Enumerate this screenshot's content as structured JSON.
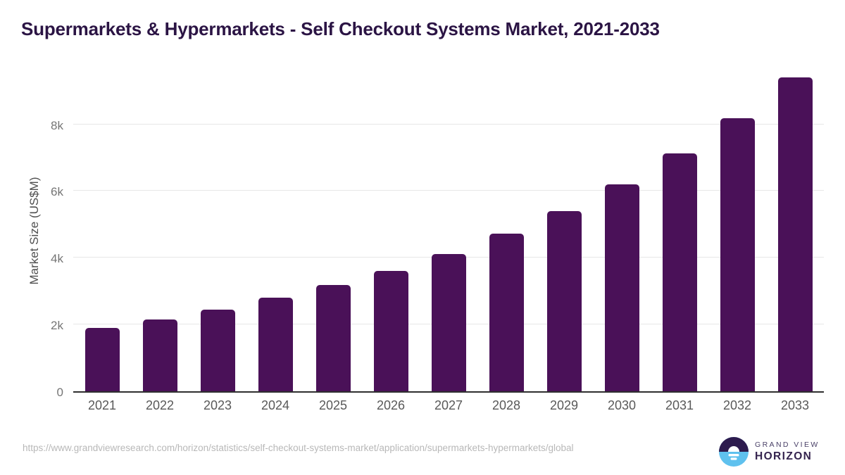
{
  "title": "Supermarkets & Hypermarkets - Self Checkout Systems Market, 2021-2033",
  "chart_data": {
    "type": "bar",
    "title": "Supermarkets & Hypermarkets - Self Checkout Systems Market, 2021-2033",
    "categories": [
      "2021",
      "2022",
      "2023",
      "2024",
      "2025",
      "2026",
      "2027",
      "2028",
      "2029",
      "2030",
      "2031",
      "2032",
      "2033"
    ],
    "values": [
      1900,
      2150,
      2450,
      2800,
      3180,
      3610,
      4110,
      4720,
      5400,
      6200,
      7120,
      8170,
      9400
    ],
    "xlabel": "",
    "ylabel": "Market Size (US$M)",
    "ylim": [
      0,
      9760
    ],
    "yticks": [
      {
        "label": "0",
        "value": 0
      },
      {
        "label": "2k",
        "value": 2000
      },
      {
        "label": "4k",
        "value": 4000
      },
      {
        "label": "6k",
        "value": 6000
      },
      {
        "label": "8k",
        "value": 8000
      }
    ],
    "grid": true,
    "legend": "none",
    "bar_color": "#4a1158"
  },
  "colors": {
    "title_text": "#2b1444",
    "axis_line": "#2f2f2f",
    "gridline": "#e7e7e7",
    "tick_text": "#757575",
    "category_text": "#595959",
    "url_text": "#b8b8b8",
    "logo_purple": "#2d1b4e",
    "logo_blue": "#5fc1ee"
  },
  "footer": {
    "source_url": "https://www.grandviewresearch.com/horizon/statistics/self-checkout-systems-market/application/supermarkets-hypermarkets/global",
    "logo": {
      "line1": "GRAND VIEW",
      "line2": "HORIZON"
    }
  }
}
